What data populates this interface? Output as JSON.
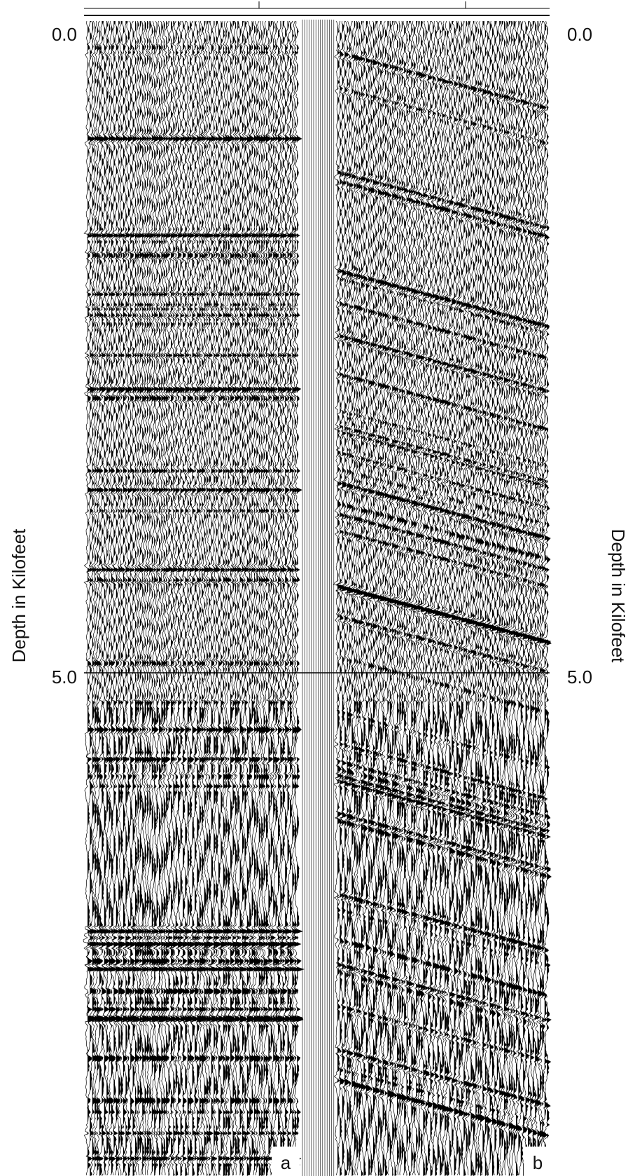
{
  "left_axis": {
    "label": "Depth in Kilofeet",
    "ticks": [
      "0.0",
      "5.0"
    ]
  },
  "right_axis": {
    "label": "Depth in Kilofeet",
    "ticks": [
      "0.0",
      "5.0"
    ]
  },
  "panels": [
    {
      "label": "a"
    },
    {
      "label": "b"
    }
  ]
}
